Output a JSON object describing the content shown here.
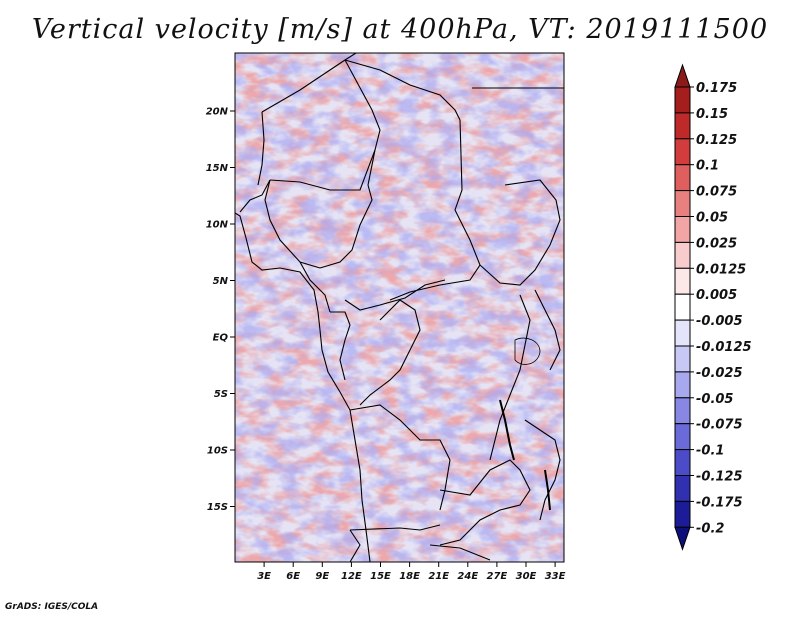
{
  "title": "Vertical velocity [m/s] at 400hPa, VT: 2019111500",
  "credit": "GrADS: IGES/COLA",
  "map": {
    "lat_labels": [
      {
        "label": "20N",
        "lat": 20
      },
      {
        "label": "15N",
        "lat": 15
      },
      {
        "label": "10N",
        "lat": 10
      },
      {
        "label": "5N",
        "lat": 5
      },
      {
        "label": "EQ",
        "lat": 0
      },
      {
        "label": "5S",
        "lat": -5
      },
      {
        "label": "10S",
        "lat": -10
      },
      {
        "label": "15S",
        "lat": -15
      }
    ],
    "lon_labels": [
      {
        "label": "3E",
        "lon": 3
      },
      {
        "label": "6E",
        "lon": 6
      },
      {
        "label": "9E",
        "lon": 9
      },
      {
        "label": "12E",
        "lon": 12
      },
      {
        "label": "15E",
        "lon": 15
      },
      {
        "label": "18E",
        "lon": 18
      },
      {
        "label": "21E",
        "lon": 21
      },
      {
        "label": "24E",
        "lon": 24
      },
      {
        "label": "27E",
        "lon": 27
      },
      {
        "label": "30E",
        "lon": 30
      },
      {
        "label": "33E",
        "lon": 33
      }
    ]
  },
  "colorbar": {
    "labels": [
      "0.175",
      "0.15",
      "0.125",
      "0.1",
      "0.075",
      "0.05",
      "0.025",
      "0.0125",
      "0.005",
      "-0.005",
      "-0.0125",
      "-0.025",
      "-0.05",
      "-0.075",
      "-0.1",
      "-0.125",
      "-0.175",
      "-0.2"
    ],
    "colors": [
      "#8b1a1a",
      "#a51e1e",
      "#be2a2a",
      "#d23c3c",
      "#df5e5e",
      "#e98080",
      "#f1a5a5",
      "#f8cccc",
      "#fde8e8",
      "#ffffff",
      "#e4e4fb",
      "#c8c8f5",
      "#a8a8ee",
      "#8888e4",
      "#6a6ad8",
      "#4c4cc8",
      "#3030b0",
      "#1c1c98",
      "#0e0e7a"
    ]
  }
}
